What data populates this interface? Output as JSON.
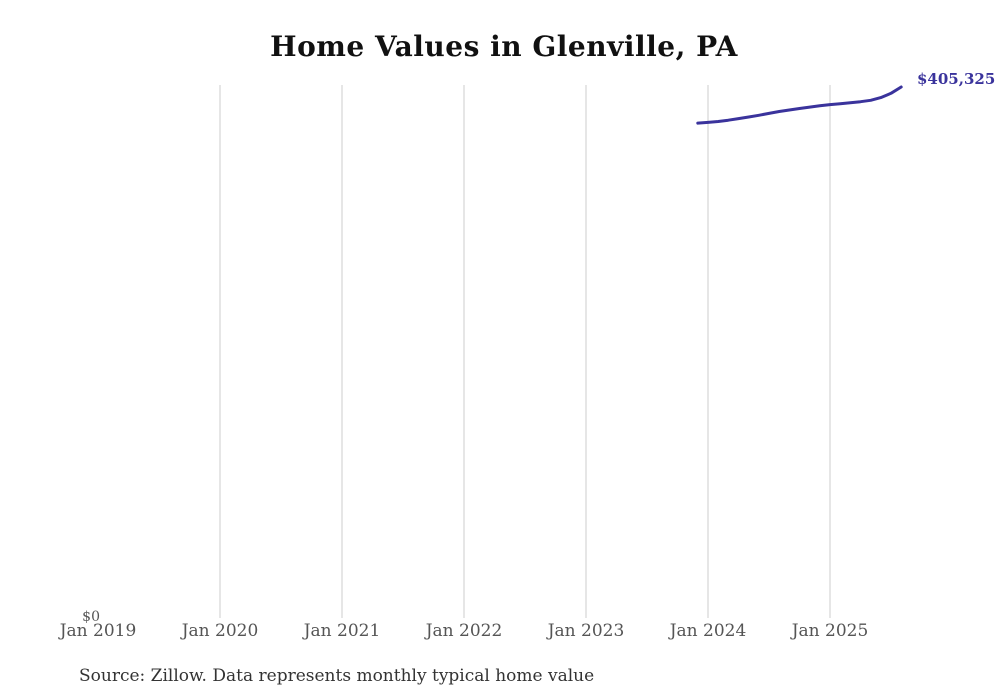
{
  "header": {
    "title": "Home Values in Glenville, PA"
  },
  "footer": {
    "source_note": "Source: Zillow. Data represents monthly typical home value"
  },
  "chart_data": {
    "type": "line",
    "title": "Home Values in Glenville, PA",
    "xlabel": "",
    "ylabel": "",
    "grid": "vertical-only",
    "legend_position": "none",
    "ylim": [
      0,
      406800
    ],
    "y_zero_label": "$0",
    "end_label": "$405,325",
    "colors": {
      "line": "#3a339c",
      "gridline": "#cccccc",
      "axis_text": "#555555",
      "title_text": "#111111",
      "footer_text": "#333333"
    },
    "x_ticks": [
      {
        "label": "Jan 2019",
        "year": 2019,
        "gridline": false
      },
      {
        "label": "Jan 2020",
        "year": 2020,
        "gridline": true
      },
      {
        "label": "Jan 2021",
        "year": 2021,
        "gridline": true
      },
      {
        "label": "Jan 2022",
        "year": 2022,
        "gridline": true
      },
      {
        "label": "Jan 2023",
        "year": 2023,
        "gridline": true
      },
      {
        "label": "Jan 2024",
        "year": 2024,
        "gridline": true
      },
      {
        "label": "Jan 2025",
        "year": 2025,
        "gridline": true
      }
    ],
    "series": [
      {
        "name": "Monthly typical home value",
        "points": [
          {
            "month": "2023-12",
            "value": 377800
          },
          {
            "month": "2024-01",
            "value": 378300
          },
          {
            "month": "2024-02",
            "value": 379000
          },
          {
            "month": "2024-03",
            "value": 380000
          },
          {
            "month": "2024-04",
            "value": 381200
          },
          {
            "month": "2024-05",
            "value": 382400
          },
          {
            "month": "2024-06",
            "value": 383700
          },
          {
            "month": "2024-07",
            "value": 385200
          },
          {
            "month": "2024-08",
            "value": 386600
          },
          {
            "month": "2024-09",
            "value": 387800
          },
          {
            "month": "2024-10",
            "value": 388900
          },
          {
            "month": "2024-11",
            "value": 390000
          },
          {
            "month": "2024-12",
            "value": 391000
          },
          {
            "month": "2025-01",
            "value": 391900
          },
          {
            "month": "2025-02",
            "value": 392600
          },
          {
            "month": "2025-03",
            "value": 393300
          },
          {
            "month": "2025-04",
            "value": 394100
          },
          {
            "month": "2025-05",
            "value": 395200
          },
          {
            "month": "2025-06",
            "value": 397200
          },
          {
            "month": "2025-07",
            "value": 400500
          },
          {
            "month": "2025-08",
            "value": 405325
          }
        ]
      }
    ]
  }
}
